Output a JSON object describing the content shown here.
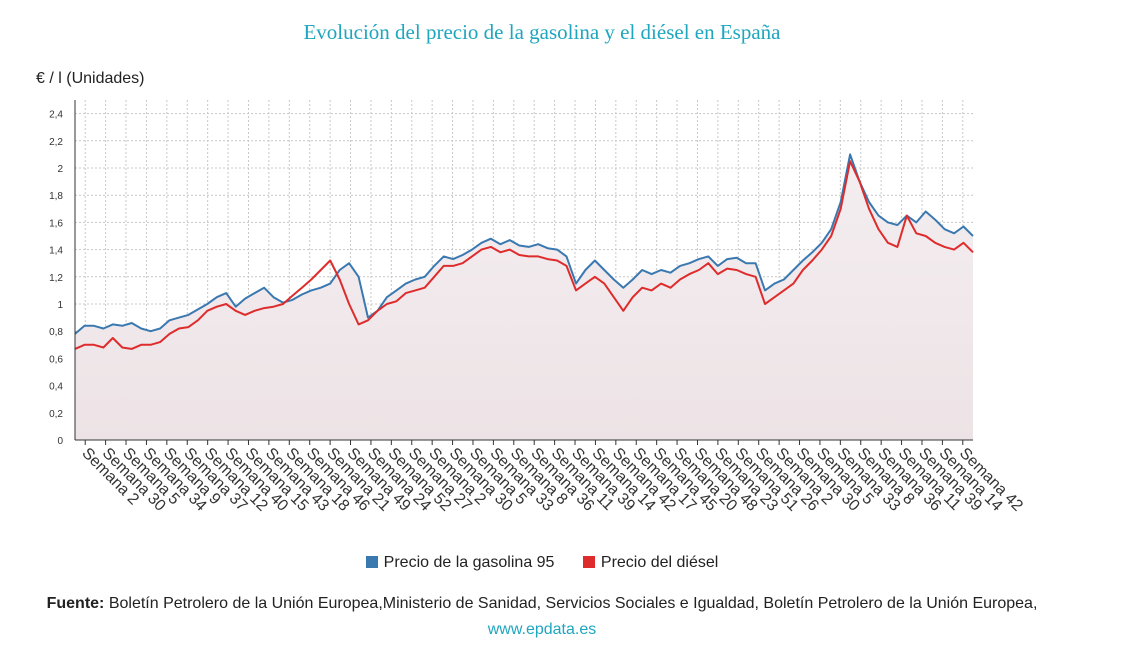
{
  "title": "Evolución del precio de la gasolina y el diésel en España",
  "ylabel": "€ / l (Unidades)",
  "legend": {
    "gasolina": "Precio de la gasolina 95",
    "diesel": "Precio del diésel"
  },
  "source": {
    "label": "Fuente:",
    "text": " Boletín Petrolero de la Unión Europea,Ministerio de Sanidad, Servicios Sociales e Igualdad, Boletín Petrolero de la Unión Europea, ",
    "link": "www.epdata.es"
  },
  "colors": {
    "gasolina": "#3a78b0",
    "diesel": "#de2c2c",
    "area": "#ede3e6",
    "title": "#1fa6bf"
  },
  "chart_data": {
    "type": "line",
    "ylim": [
      0,
      2.5
    ],
    "yticks": [
      "0",
      "0,2",
      "0,4",
      "0,6",
      "0,8",
      "1",
      "1,2",
      "1,4",
      "1,6",
      "1,8",
      "2",
      "2,2",
      "2,4"
    ],
    "grid": true,
    "legend_position": "bottom",
    "xticks": [
      "Semana 2",
      "Semana 30",
      "Semana 5",
      "Semana 34",
      "Semana 9",
      "Semana 37",
      "Semana 12",
      "Semana 40",
      "Semana 15",
      "Semana 43",
      "Semana 18",
      "Semana 46",
      "Semana 21",
      "Semana 49",
      "Semana 24",
      "Semana 52",
      "Semana 27",
      "Semana 2",
      "Semana 30",
      "Semana 5",
      "Semana 33",
      "Semana 8",
      "Semana 36",
      "Semana 11",
      "Semana 39",
      "Semana 14",
      "Semana 42",
      "Semana 17",
      "Semana 45",
      "Semana 20",
      "Semana 48",
      "Semana 23",
      "Semana 51",
      "Semana 26",
      "Semana 2",
      "Semana 30",
      "Semana 5",
      "Semana 33",
      "Semana 8",
      "Semana 36",
      "Semana 11",
      "Semana 39",
      "Semana 14",
      "Semana 42"
    ],
    "series": [
      {
        "name": "Precio de la gasolina 95",
        "values": [
          0.78,
          0.84,
          0.84,
          0.82,
          0.85,
          0.84,
          0.86,
          0.82,
          0.8,
          0.82,
          0.88,
          0.9,
          0.92,
          0.96,
          1.0,
          1.05,
          1.08,
          0.98,
          1.04,
          1.08,
          1.12,
          1.05,
          1.01,
          1.03,
          1.07,
          1.1,
          1.12,
          1.15,
          1.25,
          1.3,
          1.2,
          0.9,
          0.95,
          1.05,
          1.1,
          1.15,
          1.18,
          1.2,
          1.28,
          1.35,
          1.33,
          1.36,
          1.4,
          1.45,
          1.48,
          1.44,
          1.47,
          1.43,
          1.42,
          1.44,
          1.41,
          1.4,
          1.35,
          1.15,
          1.25,
          1.32,
          1.25,
          1.18,
          1.12,
          1.18,
          1.25,
          1.22,
          1.25,
          1.23,
          1.28,
          1.3,
          1.33,
          1.35,
          1.28,
          1.33,
          1.34,
          1.3,
          1.3,
          1.1,
          1.15,
          1.18,
          1.25,
          1.32,
          1.38,
          1.45,
          1.55,
          1.75,
          2.1,
          1.9,
          1.75,
          1.65,
          1.6,
          1.58,
          1.65,
          1.6,
          1.68,
          1.62,
          1.55,
          1.52,
          1.57,
          1.5
        ]
      },
      {
        "name": "Precio del diésel",
        "values": [
          0.67,
          0.7,
          0.7,
          0.68,
          0.75,
          0.68,
          0.67,
          0.7,
          0.7,
          0.72,
          0.78,
          0.82,
          0.83,
          0.88,
          0.95,
          0.98,
          1.0,
          0.95,
          0.92,
          0.95,
          0.97,
          0.98,
          1.0,
          1.06,
          1.12,
          1.18,
          1.25,
          1.32,
          1.18,
          1.0,
          0.85,
          0.88,
          0.95,
          1.0,
          1.02,
          1.08,
          1.1,
          1.12,
          1.2,
          1.28,
          1.28,
          1.3,
          1.35,
          1.4,
          1.42,
          1.38,
          1.4,
          1.36,
          1.35,
          1.35,
          1.33,
          1.32,
          1.28,
          1.1,
          1.15,
          1.2,
          1.15,
          1.05,
          0.95,
          1.05,
          1.12,
          1.1,
          1.15,
          1.12,
          1.18,
          1.22,
          1.25,
          1.3,
          1.22,
          1.26,
          1.25,
          1.22,
          1.2,
          1.0,
          1.05,
          1.1,
          1.15,
          1.25,
          1.32,
          1.4,
          1.5,
          1.7,
          2.05,
          1.9,
          1.7,
          1.55,
          1.45,
          1.42,
          1.65,
          1.52,
          1.5,
          1.45,
          1.42,
          1.4,
          1.45,
          1.38
        ]
      }
    ]
  }
}
